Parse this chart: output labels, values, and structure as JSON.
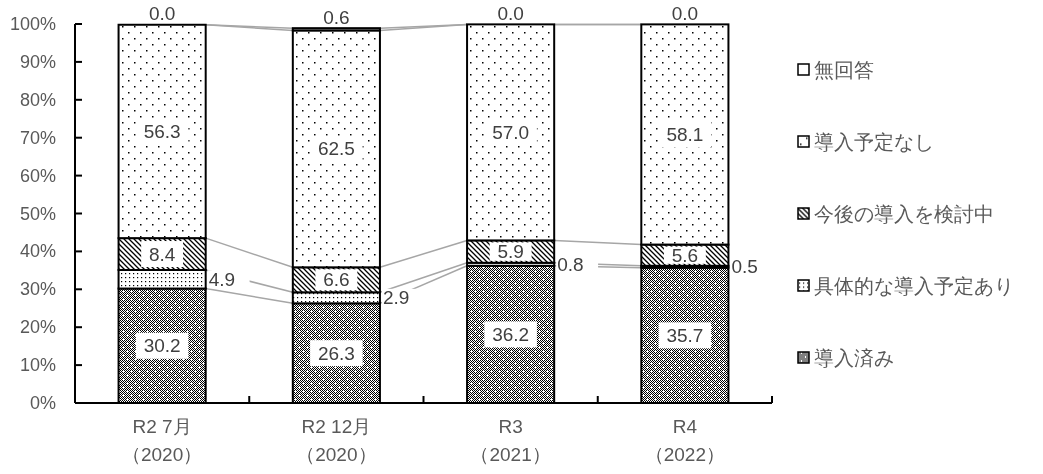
{
  "chart_data": {
    "type": "bar",
    "stacked": true,
    "categories": [
      "R2 7月（2020）",
      "R2 12月（2020）",
      "R3（2021）",
      "R4（2022）"
    ],
    "series": [
      {
        "name": "導入済み",
        "color": "#000000",
        "values": [
          30.2,
          26.3,
          36.2,
          35.7
        ],
        "value_labels": [
          "30.2",
          "26.3",
          "36.2",
          "35.7"
        ]
      },
      {
        "name": "具体的な導入予定あり",
        "color": "#000000",
        "values": [
          4.9,
          2.9,
          0.8,
          0.5
        ],
        "value_labels": [
          "4.9",
          "2.9",
          "0.8",
          "0.5"
        ]
      },
      {
        "name": "今後の導入を検討中",
        "color": "#000000",
        "values": [
          8.4,
          6.6,
          5.9,
          5.6
        ],
        "value_labels": [
          "8.4",
          "6.6",
          "5.9",
          "5.6"
        ]
      },
      {
        "name": "導入予定なし",
        "color": "#000000",
        "values": [
          56.3,
          62.5,
          57.0,
          58.1
        ],
        "value_labels": [
          "56.3",
          "62.5",
          "57.0",
          "58.1"
        ]
      },
      {
        "name": "無回答",
        "color": "#ffffff",
        "values": [
          0.0,
          0.6,
          0.0,
          0.0
        ],
        "value_labels": [
          "0.0",
          "0.6",
          "0.0",
          "0.0"
        ]
      }
    ],
    "ylim": [
      0,
      100
    ],
    "yticks": [
      {
        "value": 0,
        "label": "0%"
      },
      {
        "value": 10,
        "label": "10%"
      },
      {
        "value": 20,
        "label": "20%"
      },
      {
        "value": 30,
        "label": "30%"
      },
      {
        "value": 40,
        "label": "40%"
      },
      {
        "value": 50,
        "label": "50%"
      },
      {
        "value": 60,
        "label": "60%"
      },
      {
        "value": 70,
        "label": "70%"
      },
      {
        "value": 80,
        "label": "80%"
      },
      {
        "value": 90,
        "label": "90%"
      },
      {
        "value": 100,
        "label": "100%"
      }
    ],
    "legend": "right"
  }
}
